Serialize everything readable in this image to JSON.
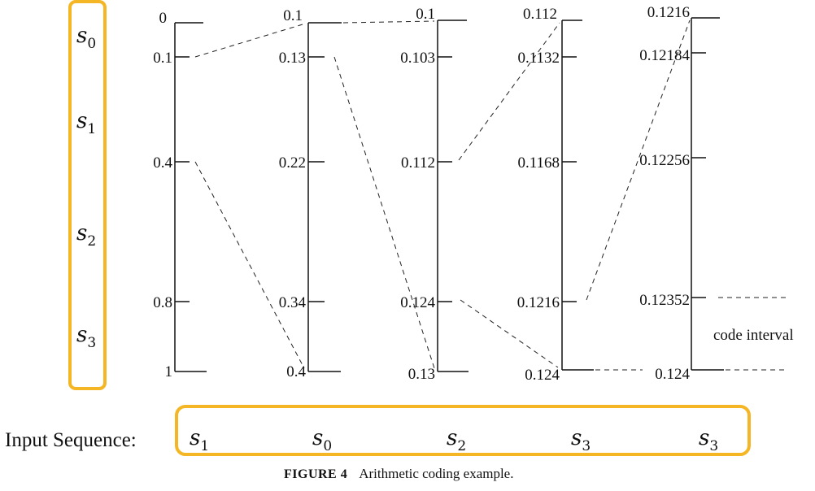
{
  "symbols": [
    {
      "base": "s",
      "sub": "0"
    },
    {
      "base": "s",
      "sub": "1"
    },
    {
      "base": "s",
      "sub": "2"
    },
    {
      "base": "s",
      "sub": "3"
    }
  ],
  "highlight_color": "#F5B626",
  "columns": [
    {
      "ticks": [
        "0",
        "0.1",
        "0.4",
        "0.8",
        "1"
      ],
      "input": {
        "base": "s",
        "sub": "1"
      }
    },
    {
      "ticks": [
        "0.1",
        "0.13",
        "0.22",
        "0.34",
        "0.4"
      ],
      "input": {
        "base": "s",
        "sub": "0"
      }
    },
    {
      "ticks": [
        "0.1",
        "0.103",
        "0.112",
        "0.124",
        "0.13"
      ],
      "input": {
        "base": "s",
        "sub": "2"
      }
    },
    {
      "ticks": [
        "0.112",
        "0.1132",
        "0.1168",
        "0.1216",
        "0.124"
      ],
      "input": {
        "base": "s",
        "sub": "3"
      }
    },
    {
      "ticks": [
        "0.1216",
        "0.12184",
        "0.12256",
        "0.12352",
        "0.124"
      ],
      "input": {
        "base": "s",
        "sub": "3"
      }
    }
  ],
  "code_interval_label": "code interval",
  "input_label": "Input Sequence:",
  "caption": {
    "number": "FIGURE 4",
    "text": "Arithmetic coding example."
  }
}
